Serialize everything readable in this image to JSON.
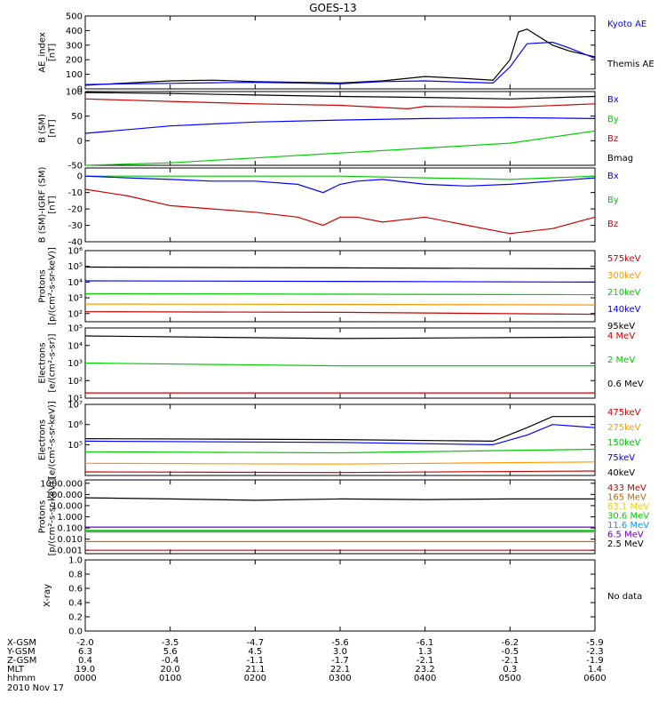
{
  "title": "GOES-13",
  "date_label": "2010 Nov 17",
  "chart_data": [
    {
      "type": "line",
      "panel": "ae",
      "ylabel": "AE_index\n[nT]",
      "ylim": [
        0,
        500
      ],
      "yscale": "linear",
      "yticks": [
        "0",
        "100",
        "200",
        "300",
        "400",
        "500"
      ],
      "ytick_values": [
        0,
        100,
        200,
        300,
        400,
        500
      ],
      "series": [
        {
          "name": "Kyoto AE",
          "color": "#0000ff",
          "x": [
            0,
            5,
            10,
            15,
            20,
            25,
            30,
            35,
            40,
            45,
            48,
            50,
            52,
            55,
            57,
            60
          ],
          "y": [
            30,
            35,
            38,
            42,
            45,
            40,
            35,
            50,
            55,
            45,
            40,
            150,
            310,
            320,
            280,
            210
          ]
        },
        {
          "name": "Themis AE",
          "color": "#000000",
          "x": [
            0,
            5,
            10,
            15,
            20,
            25,
            30,
            35,
            40,
            45,
            48,
            50,
            51,
            52,
            55,
            57,
            60
          ],
          "y": [
            25,
            40,
            55,
            60,
            50,
            45,
            40,
            55,
            85,
            70,
            60,
            200,
            390,
            410,
            300,
            260,
            220
          ]
        }
      ]
    },
    {
      "type": "line",
      "panel": "b_sm",
      "ylabel": "B (SM)\n[nT]",
      "ylim": [
        -50,
        100
      ],
      "yscale": "linear",
      "yticks": [
        "-50",
        "0",
        "50",
        "100"
      ],
      "ytick_values": [
        -50,
        0,
        50,
        100
      ],
      "series": [
        {
          "name": "Bx",
          "color": "#0000ff",
          "x": [
            0,
            10,
            20,
            30,
            40,
            50,
            60
          ],
          "y": [
            15,
            30,
            38,
            42,
            45,
            47,
            45
          ]
        },
        {
          "name": "By",
          "color": "#00cc00",
          "x": [
            0,
            10,
            20,
            30,
            40,
            50,
            60
          ],
          "y": [
            -50,
            -45,
            -35,
            -25,
            -15,
            -5,
            20
          ]
        },
        {
          "name": "Bz",
          "color": "#cc0000",
          "x": [
            0,
            10,
            20,
            30,
            38,
            40,
            50,
            60
          ],
          "y": [
            85,
            80,
            75,
            72,
            65,
            70,
            68,
            75
          ]
        },
        {
          "name": "Bmag",
          "color": "#000000",
          "x": [
            0,
            10,
            20,
            30,
            40,
            50,
            60
          ],
          "y": [
            98,
            96,
            93,
            90,
            88,
            85,
            90
          ]
        }
      ]
    },
    {
      "type": "line",
      "panel": "b_igrf",
      "ylabel": "B (SM)-IGRF (SM)\n[nT]",
      "ylim": [
        -40,
        5
      ],
      "yscale": "linear",
      "yticks": [
        "-40",
        "-30",
        "-20",
        "-10",
        "0"
      ],
      "ytick_values": [
        -40,
        -30,
        -20,
        -10,
        0
      ],
      "series": [
        {
          "name": "Bx",
          "color": "#0000ff",
          "x": [
            0,
            5,
            10,
            15,
            20,
            25,
            28,
            30,
            32,
            35,
            40,
            45,
            50,
            55,
            60
          ],
          "y": [
            0,
            -1,
            -2,
            -3,
            -3,
            -5,
            -10,
            -5,
            -3,
            -2,
            -5,
            -6,
            -5,
            -3,
            -1
          ]
        },
        {
          "name": "By",
          "color": "#00cc00",
          "x": [
            0,
            10,
            20,
            30,
            40,
            50,
            60
          ],
          "y": [
            0,
            0,
            0,
            0,
            -1,
            -2,
            0
          ]
        },
        {
          "name": "Bz",
          "color": "#cc0000",
          "x": [
            0,
            5,
            10,
            15,
            20,
            25,
            28,
            30,
            32,
            35,
            40,
            45,
            50,
            55,
            60
          ],
          "y": [
            -8,
            -12,
            -18,
            -20,
            -22,
            -25,
            -30,
            -25,
            -25,
            -28,
            -25,
            -30,
            -35,
            -32,
            -25
          ]
        }
      ]
    },
    {
      "type": "line",
      "panel": "protons_mag",
      "ylabel": "Protons\n[p/(cm²-s-sr-keV)]",
      "ylim": [
        30,
        1000000
      ],
      "yscale": "log",
      "yticks": [
        "10²",
        "10³",
        "10⁴",
        "10⁵",
        "10⁶"
      ],
      "ytick_values": [
        100,
        1000,
        10000,
        100000,
        1000000
      ],
      "series": [
        {
          "name": "575keV",
          "color": "#cc0000",
          "x": [
            0,
            30,
            60
          ],
          "y": [
            130,
            120,
            90
          ]
        },
        {
          "name": "300keV",
          "color": "#ff9900",
          "x": [
            0,
            30,
            60
          ],
          "y": [
            400,
            380,
            350
          ]
        },
        {
          "name": "210keV",
          "color": "#00cc00",
          "x": [
            0,
            30,
            60
          ],
          "y": [
            1800,
            1700,
            1600
          ]
        },
        {
          "name": "140keV",
          "color": "#0000ff",
          "x": [
            0,
            30,
            60
          ],
          "y": [
            12000,
            11000,
            10000
          ]
        },
        {
          "name": "95keV",
          "color": "#000000",
          "x": [
            0,
            30,
            60
          ],
          "y": [
            90000,
            80000,
            70000
          ]
        }
      ]
    },
    {
      "type": "line",
      "panel": "electrons_mev",
      "ylabel": "Electrons\n[e/(cm²-s-sr)]",
      "ylim": [
        10,
        100000
      ],
      "yscale": "log",
      "yticks": [
        "10¹",
        "10²",
        "10³",
        "10⁴",
        "10⁵"
      ],
      "ytick_values": [
        10,
        100,
        1000,
        10000,
        100000
      ],
      "series": [
        {
          "name": "4 MeV",
          "color": "#cc0000",
          "x": [
            0,
            30,
            60
          ],
          "y": [
            20,
            20,
            20
          ]
        },
        {
          "name": "2 MeV",
          "color": "#00cc00",
          "x": [
            0,
            30,
            60
          ],
          "y": [
            1000,
            700,
            700
          ]
        },
        {
          "name": "0.6 MeV",
          "color": "#000000",
          "x": [
            0,
            30,
            60
          ],
          "y": [
            35000,
            25000,
            30000
          ]
        }
      ]
    },
    {
      "type": "line",
      "panel": "electrons_kev",
      "ylabel": "Electrons\n[e/(cm²-s-sr-keV)]",
      "ylim": [
        3000,
        10000000
      ],
      "yscale": "log",
      "yticks": [
        "10⁵",
        "10⁶",
        "10⁷"
      ],
      "ytick_values": [
        100000,
        1000000,
        10000000
      ],
      "series": [
        {
          "name": "475keV",
          "color": "#cc0000",
          "x": [
            0,
            30,
            60
          ],
          "y": [
            4500,
            4200,
            5000
          ]
        },
        {
          "name": "275keV",
          "color": "#ff9900",
          "x": [
            0,
            30,
            60
          ],
          "y": [
            12000,
            11000,
            14000
          ]
        },
        {
          "name": "150keV",
          "color": "#00cc00",
          "x": [
            0,
            30,
            60
          ],
          "y": [
            45000,
            40000,
            60000
          ]
        },
        {
          "name": "75keV",
          "color": "#0000ff",
          "x": [
            0,
            30,
            48,
            52,
            55,
            60
          ],
          "y": [
            150000,
            130000,
            100000,
            300000,
            1000000,
            700000
          ]
        },
        {
          "name": "40keV",
          "color": "#000000",
          "x": [
            0,
            30,
            48,
            52,
            55,
            60
          ],
          "y": [
            200000,
            180000,
            150000,
            700000,
            2500000,
            2500000
          ]
        }
      ]
    },
    {
      "type": "line",
      "panel": "protons_mev",
      "ylabel": "Protons\n[p/(cm²-s-sr-keV)]",
      "ylim": [
        0.0005,
        2000
      ],
      "yscale": "log",
      "yticks": [
        "0.001",
        "0.010",
        "0.100",
        "1.000",
        "10.000",
        "100.000",
        "1000.000"
      ],
      "ytick_values": [
        0.001,
        0.01,
        0.1,
        1,
        10,
        100,
        1000
      ],
      "series": [
        {
          "name": "433 MeV",
          "color": "#cc0000",
          "x": [
            0,
            60
          ],
          "y": [
            0.001,
            0.001
          ]
        },
        {
          "name": "165 MeV",
          "color": "#cc6600",
          "x": [
            0,
            60
          ],
          "y": [
            0.006,
            0.006
          ]
        },
        {
          "name": "63.1 MeV",
          "color": "#ffcc00",
          "x": [
            0,
            60
          ],
          "y": [
            0.04,
            0.04
          ]
        },
        {
          "name": "30.6 MeV",
          "color": "#00cc00",
          "x": [
            0,
            60
          ],
          "y": [
            0.06,
            0.06
          ]
        },
        {
          "name": "11.6 MeV",
          "color": "#0099ff",
          "x": [
            0,
            60
          ],
          "y": [
            0.05,
            0.05
          ]
        },
        {
          "name": "6.5 MeV",
          "color": "#6600cc",
          "x": [
            0,
            60
          ],
          "y": [
            0.12,
            0.12
          ]
        },
        {
          "name": "2.5 MeV",
          "color": "#000000",
          "x": [
            0,
            10,
            20,
            30,
            40,
            50,
            60
          ],
          "y": [
            50,
            40,
            30,
            40,
            35,
            40,
            40
          ]
        }
      ]
    },
    {
      "type": "line",
      "panel": "xray",
      "ylabel": "X-ray",
      "ylim": [
        0,
        1
      ],
      "yscale": "linear",
      "yticks": [
        "0.0",
        "0.2",
        "0.4",
        "0.6",
        "0.8",
        "1.0"
      ],
      "ytick_values": [
        0,
        0.2,
        0.4,
        0.6,
        0.8,
        1.0
      ],
      "note": "No data",
      "series": []
    }
  ],
  "x_axis": {
    "xlim": [
      0,
      60
    ],
    "tick_minutes": [
      0,
      10,
      20,
      30,
      40,
      50,
      60
    ],
    "rows": [
      {
        "label": "X-GSM",
        "values": [
          "-2.0",
          "-3.5",
          "-4.7",
          "-5.6",
          "-6.1",
          "-6.2",
          "-5.9"
        ]
      },
      {
        "label": "Y-GSM",
        "values": [
          "6.3",
          "5.6",
          "4.5",
          "3.0",
          "1.3",
          "-0.5",
          "-2.3"
        ]
      },
      {
        "label": "Z-GSM",
        "values": [
          "0.4",
          "-0.4",
          "-1.1",
          "-1.7",
          "-2.1",
          "-2.1",
          "-1.9"
        ]
      },
      {
        "label": "MLT",
        "values": [
          "19.0",
          "20.0",
          "21.1",
          "22.1",
          "23.2",
          "0.3",
          "1.4"
        ]
      },
      {
        "label": "hhmm",
        "values": [
          "0000",
          "0100",
          "0200",
          "0300",
          "0400",
          "0500",
          "0600"
        ]
      }
    ]
  }
}
